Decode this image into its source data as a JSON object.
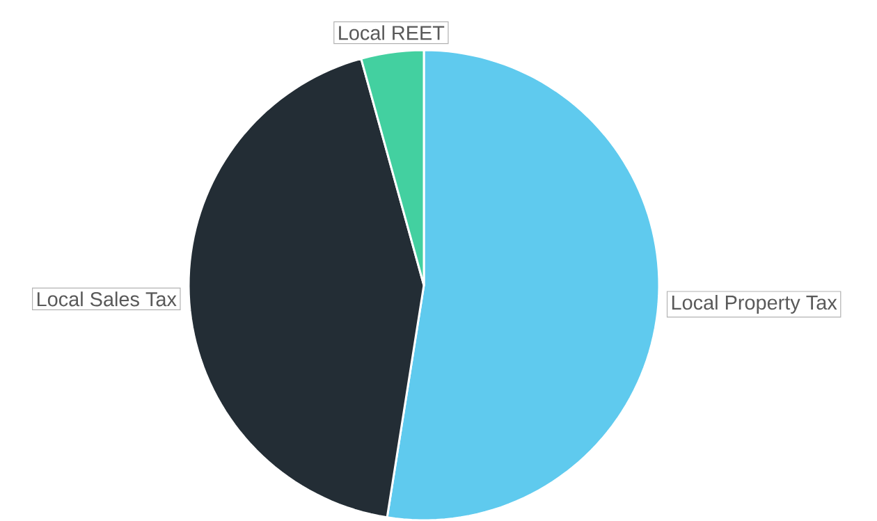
{
  "chart_data": {
    "type": "pie",
    "categories": [
      "Local Property Tax",
      "Local Sales Tax",
      "Local REET"
    ],
    "values": [
      52.5,
      43.2,
      4.3
    ],
    "colors": [
      "#5fcaee",
      "#232d35",
      "#43d0a0"
    ]
  }
}
